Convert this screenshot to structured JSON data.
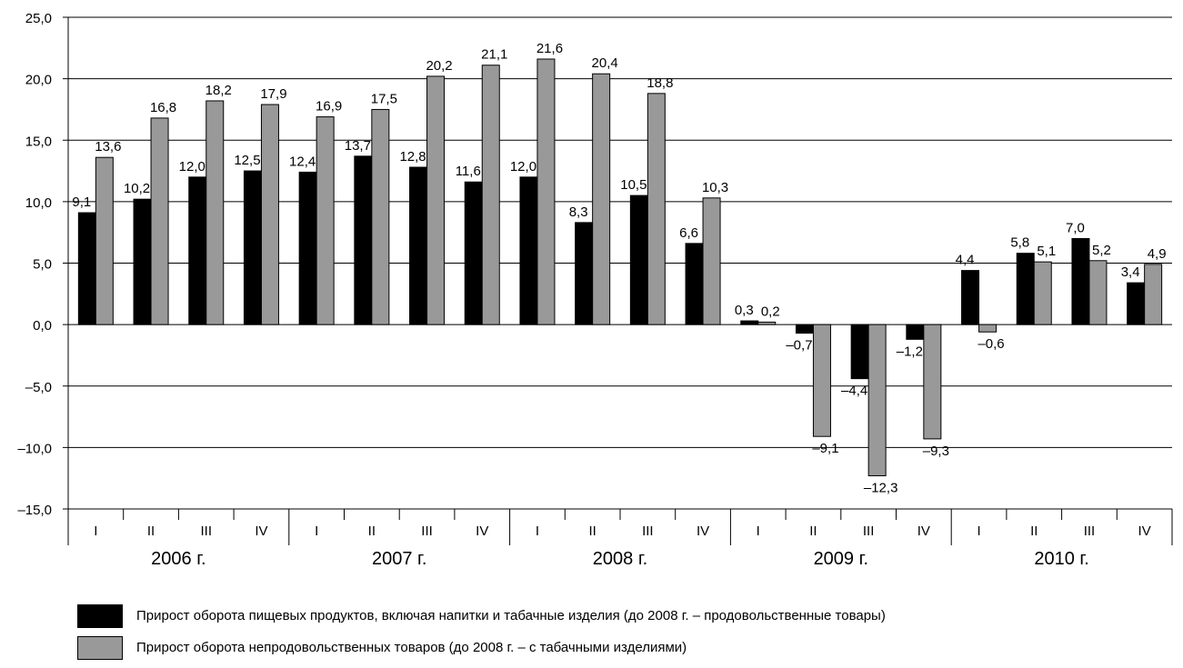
{
  "chart_data": {
    "type": "bar",
    "ylim": [
      -15,
      25
    ],
    "yticks": [
      "25,0",
      "20,0",
      "15,0",
      "10,0",
      "5,0",
      "0,0",
      "–5,0",
      "–10,0",
      "–15,0"
    ],
    "ytick_values": [
      25,
      20,
      15,
      10,
      5,
      0,
      -5,
      -10,
      -15
    ],
    "grid": true,
    "categories": [
      "I",
      "II",
      "III",
      "IV",
      "I",
      "II",
      "III",
      "IV",
      "I",
      "II",
      "III",
      "IV",
      "I",
      "II",
      "III",
      "IV",
      "I",
      "II",
      "III",
      "IV"
    ],
    "years": [
      "2006 г.",
      "2007 г.",
      "2008 г.",
      "2009 г.",
      "2010 г."
    ],
    "series": [
      {
        "name": "Прирост оборота пищевых продуктов, включая напитки и табачные изделия (до 2008 г. – продовольственные товары)",
        "color": "#000000",
        "values": [
          9.1,
          10.2,
          12.0,
          12.5,
          12.4,
          13.7,
          12.8,
          11.6,
          12.0,
          8.3,
          10.5,
          6.6,
          0.3,
          -0.7,
          -4.4,
          -1.2,
          4.4,
          5.8,
          7.0,
          3.4
        ],
        "labels": [
          "9,1",
          "10,2",
          "12,0",
          "12,5",
          "12,4",
          "13,7",
          "12,8",
          "11,6",
          "12,0",
          "8,3",
          "10,5",
          "6,6",
          "0,3",
          "–0,7",
          "–4,4",
          "–1,2",
          "4,4",
          "5,8",
          "7,0",
          "3,4"
        ]
      },
      {
        "name": "Прирост оборота непродовольственных товаров (до 2008 г. – с табачными изделиями)",
        "color": "#999999",
        "values": [
          13.6,
          16.8,
          18.2,
          17.9,
          16.9,
          17.5,
          20.2,
          21.1,
          21.6,
          20.4,
          18.8,
          10.3,
          0.2,
          -9.1,
          -12.3,
          -9.3,
          -0.6,
          5.1,
          5.2,
          4.9
        ],
        "labels": [
          "13,6",
          "16,8",
          "18,2",
          "17,9",
          "16,9",
          "17,5",
          "20,2",
          "21,1",
          "21,6",
          "20,4",
          "18,8",
          "10,3",
          "0,2",
          "–9,1",
          "–12,3",
          "–9,3",
          "–0,6",
          "5,1",
          "5,2",
          "4,9"
        ]
      }
    ]
  }
}
